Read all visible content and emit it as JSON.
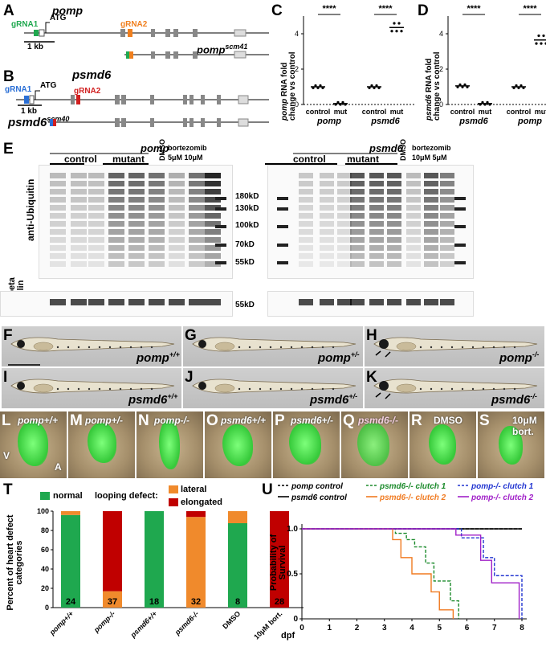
{
  "panel_labels": {
    "A": "A",
    "B": "B",
    "C": "C",
    "D": "D",
    "E": "E",
    "F": "F",
    "G": "G",
    "H": "H",
    "I": "I",
    "J": "J",
    "K": "K",
    "L": "L",
    "M": "M",
    "N": "N",
    "O": "O",
    "P": "P",
    "Q": "Q",
    "R": "R",
    "S": "S",
    "T": "T",
    "U": "U"
  },
  "panelA": {
    "gene": "pomp",
    "grna1": "gRNA1",
    "atg": "ATG",
    "grna2": "gRNA2",
    "scale": "1 kb",
    "allele_base": "pomp",
    "allele_sup": "scm41"
  },
  "panelB": {
    "gene": "psmd6",
    "grna1": "gRNA1",
    "atg": "ATG",
    "grna2": "gRNA2",
    "scale": "1 kb",
    "allele_base": "psmd6",
    "allele_sup": "scm40"
  },
  "colors": {
    "pomp_grna1": "#1fa84f",
    "pomp_grna2": "#f07f1e",
    "psmd6_grna1": "#2a6fd6",
    "psmd6_grna2": "#d11f1f",
    "normal": "#1fa84f",
    "lateral": "#f08a2c",
    "elongated": "#c00000",
    "psmd6_c1": "#1a8a2a",
    "psmd6_c2": "#f07a20",
    "pomp_c1": "#2336d1",
    "pomp_c2": "#a020c8"
  },
  "chart_data": [
    {
      "id": "C",
      "type": "scatter",
      "title": "",
      "ylabel": "pomp RNA fold change vs control",
      "ylim": [
        0,
        5
      ],
      "yticks": [
        "0",
        "2",
        "4"
      ],
      "groups": [
        {
          "label": "control",
          "gene": "pomp",
          "mean": 1.0
        },
        {
          "label": "mut",
          "gene": "pomp",
          "mean": 0.05
        },
        {
          "label": "control",
          "gene": "psmd6",
          "mean": 1.0
        },
        {
          "label": "mut",
          "gene": "psmd6",
          "mean": 4.35
        }
      ],
      "x_gene_labels": [
        "pomp",
        "psmd6"
      ],
      "x_group_labels": [
        "control",
        "mut",
        "control",
        "mut"
      ],
      "significance": [
        "****",
        "****"
      ]
    },
    {
      "id": "D",
      "type": "scatter",
      "title": "",
      "ylabel": "psmd6 RNA fold change vs control",
      "ylim": [
        0,
        5
      ],
      "yticks": [
        "0",
        "2",
        "4"
      ],
      "groups": [
        {
          "label": "control",
          "gene": "psmd6",
          "mean": 1.05
        },
        {
          "label": "mut",
          "gene": "psmd6",
          "mean": 0.05
        },
        {
          "label": "control",
          "gene": "pomp",
          "mean": 1.0
        },
        {
          "label": "mut",
          "gene": "pomp",
          "mean": 3.65
        }
      ],
      "x_gene_labels": [
        "psmd6",
        "pomp"
      ],
      "x_group_labels": [
        "control",
        "mut",
        "control",
        "mut"
      ],
      "significance": [
        "****",
        "****"
      ]
    },
    {
      "id": "T",
      "type": "bar",
      "ylabel": "Percent of heart defect categories",
      "ylim": [
        0,
        100
      ],
      "yticks": [
        "0",
        "20",
        "40",
        "60",
        "80",
        "100"
      ],
      "categories": [
        "pomp+/+",
        "pomp-/-",
        "psmd6+/+",
        "psmd6-/-",
        "DMSO",
        "10μM bort."
      ],
      "series": [
        {
          "name": "normal",
          "values": [
            96,
            0,
            100,
            0,
            87.5,
            0
          ]
        },
        {
          "name": "lateral",
          "values": [
            4,
            17,
            0,
            94,
            12.5,
            0
          ]
        },
        {
          "name": "elongated",
          "values": [
            0,
            83,
            0,
            6,
            0,
            100
          ]
        }
      ],
      "n": [
        "24",
        "37",
        "18",
        "32",
        "8",
        "28"
      ],
      "legend": {
        "normal": "normal",
        "looping": "looping defect:",
        "lateral": "lateral",
        "elongated": "elongated"
      }
    },
    {
      "id": "U",
      "type": "line",
      "ylabel": "Probability of Survival",
      "xlabel": "dpf",
      "xlim": [
        0,
        8
      ],
      "ylim": [
        0,
        1
      ],
      "xticks": [
        "0",
        "1",
        "2",
        "3",
        "4",
        "5",
        "6",
        "7",
        "8"
      ],
      "yticks": [
        "0",
        "0.5",
        "1.0"
      ],
      "series": [
        {
          "name": "pomp control",
          "style": "dashed",
          "color": "#000",
          "steps": [
            [
              0,
              1
            ],
            [
              8,
              1
            ]
          ]
        },
        {
          "name": "psmd6 control",
          "style": "solid",
          "color": "#000",
          "steps": [
            [
              0,
              1
            ],
            [
              8,
              1
            ]
          ]
        },
        {
          "name": "psmd6-/- clutch 1",
          "style": "dashed",
          "color": "#1a8a2a",
          "steps": [
            [
              0,
              1
            ],
            [
              3.4,
              1
            ],
            [
              3.4,
              0.95
            ],
            [
              3.8,
              0.95
            ],
            [
              3.8,
              0.88
            ],
            [
              4.1,
              0.88
            ],
            [
              4.1,
              0.8
            ],
            [
              4.5,
              0.8
            ],
            [
              4.5,
              0.62
            ],
            [
              4.8,
              0.62
            ],
            [
              4.8,
              0.42
            ],
            [
              5.4,
              0.42
            ],
            [
              5.4,
              0.2
            ],
            [
              5.7,
              0.2
            ],
            [
              5.7,
              0
            ]
          ]
        },
        {
          "name": "psmd6-/- clutch 2",
          "style": "solid",
          "color": "#f07a20",
          "steps": [
            [
              0,
              1
            ],
            [
              3.3,
              1
            ],
            [
              3.3,
              0.88
            ],
            [
              3.6,
              0.88
            ],
            [
              3.6,
              0.68
            ],
            [
              4,
              0.68
            ],
            [
              4,
              0.5
            ],
            [
              4.7,
              0.5
            ],
            [
              4.7,
              0.3
            ],
            [
              5,
              0.3
            ],
            [
              5,
              0.1
            ],
            [
              5.5,
              0.1
            ],
            [
              5.5,
              0
            ]
          ]
        },
        {
          "name": "pomp-/- clutch 1",
          "style": "dashed",
          "color": "#2336d1",
          "steps": [
            [
              0,
              1
            ],
            [
              5.8,
              1
            ],
            [
              5.8,
              0.9
            ],
            [
              6.6,
              0.9
            ],
            [
              6.6,
              0.68
            ],
            [
              7,
              0.68
            ],
            [
              7,
              0.48
            ],
            [
              8,
              0.48
            ],
            [
              8,
              0
            ]
          ]
        },
        {
          "name": "pomp-/- clutch 2",
          "style": "solid",
          "color": "#a020c8",
          "steps": [
            [
              0,
              1
            ],
            [
              5.6,
              1
            ],
            [
              5.6,
              0.93
            ],
            [
              6.5,
              0.93
            ],
            [
              6.5,
              0.65
            ],
            [
              6.9,
              0.65
            ],
            [
              6.9,
              0.4
            ],
            [
              7.9,
              0.4
            ],
            [
              7.9,
              0
            ]
          ]
        }
      ]
    }
  ],
  "panelE": {
    "left_gene": "pomp",
    "right_gene": "psmd6",
    "control": "control",
    "mutant": "mutant",
    "dmso": "DMSO",
    "bortezomib": "bortezomib",
    "left_doses": "5μM 10μM",
    "right_doses": "10μM 5μM",
    "anti_ub": "anti-Ubiquitin",
    "anti_tub": "anti-beta Tubulin",
    "markers": [
      "180kD",
      "130kD",
      "100kD",
      "70kD",
      "55kD"
    ],
    "tub_marker": "55kD"
  },
  "fish": [
    {
      "id": "F",
      "base": "pomp",
      "sup": "+/+"
    },
    {
      "id": "G",
      "base": "pomp",
      "sup": "+/-"
    },
    {
      "id": "H",
      "base": "pomp",
      "sup": "-/-"
    },
    {
      "id": "I",
      "base": "psmd6",
      "sup": "+/+"
    },
    {
      "id": "J",
      "base": "psmd6",
      "sup": "+/-"
    },
    {
      "id": "K",
      "base": "psmd6",
      "sup": "-/-"
    }
  ],
  "hearts": [
    {
      "id": "L",
      "text": "pomp+/+"
    },
    {
      "id": "M",
      "text": "pomp+/-"
    },
    {
      "id": "N",
      "text": "pomp-/-"
    },
    {
      "id": "O",
      "text": "psmd6+/+"
    },
    {
      "id": "P",
      "text": "psmd6+/-"
    },
    {
      "id": "Q",
      "text": "psmd6-/-"
    },
    {
      "id": "R",
      "text": "DMSO"
    },
    {
      "id": "S",
      "text": "10μM bort."
    }
  ],
  "heartV": "V",
  "heartA": "A"
}
